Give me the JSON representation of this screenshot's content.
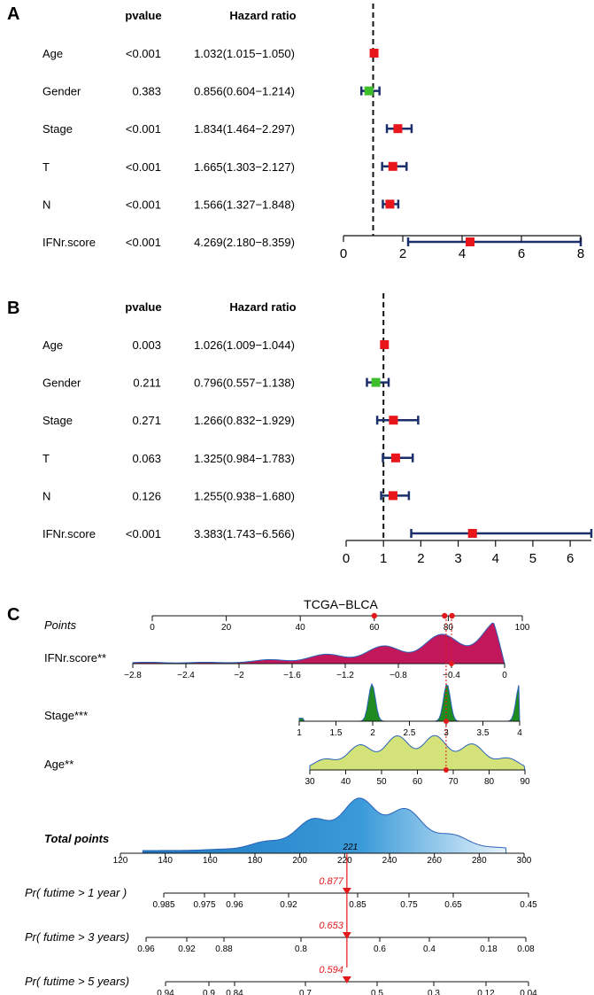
{
  "colors": {
    "navy": "#1b2f6b",
    "red": "#e8151b",
    "green": "#3cbf2a",
    "magenta": "#c2185b",
    "darkgreen": "#1f8a1f",
    "lime": "#d4e27a",
    "blue": "#2b8fd0",
    "marker": "#e31a1c"
  },
  "panel_labels": [
    "A",
    "B",
    "C"
  ],
  "chart_data": [
    {
      "type": "forest",
      "panel": "A",
      "col_pvalue": "pvalue",
      "col_hr": "Hazard ratio",
      "xlim": [
        0,
        8
      ],
      "xticks": [
        "0",
        "2",
        "4",
        "6",
        "8"
      ],
      "reference_line": 1,
      "rows": [
        {
          "label": "Age",
          "pvalue": "<0.001",
          "hr_text": "1.032(1.015−1.050)",
          "hr": 1.032,
          "lo": 1.015,
          "hi": 1.05,
          "risk": true
        },
        {
          "label": "Gender",
          "pvalue": "0.383",
          "hr_text": "0.856(0.604−1.214)",
          "hr": 0.856,
          "lo": 0.604,
          "hi": 1.214,
          "risk": false
        },
        {
          "label": "Stage",
          "pvalue": "<0.001",
          "hr_text": "1.834(1.464−2.297)",
          "hr": 1.834,
          "lo": 1.464,
          "hi": 2.297,
          "risk": true
        },
        {
          "label": "T",
          "pvalue": "<0.001",
          "hr_text": "1.665(1.303−2.127)",
          "hr": 1.665,
          "lo": 1.303,
          "hi": 2.127,
          "risk": true
        },
        {
          "label": "N",
          "pvalue": "<0.001",
          "hr_text": "1.566(1.327−1.848)",
          "hr": 1.566,
          "lo": 1.327,
          "hi": 1.848,
          "risk": true
        },
        {
          "label": "IFNr.score",
          "pvalue": "<0.001",
          "hr_text": "4.269(2.180−8.359)",
          "hr": 4.269,
          "lo": 2.18,
          "hi": 8.359,
          "risk": true
        }
      ]
    },
    {
      "type": "forest",
      "panel": "B",
      "col_pvalue": "pvalue",
      "col_hr": "Hazard ratio",
      "xlim": [
        0,
        6.566
      ],
      "xticks": [
        "0",
        "1",
        "2",
        "3",
        "4",
        "5",
        "6"
      ],
      "reference_line": 1,
      "rows": [
        {
          "label": "Age",
          "pvalue": "0.003",
          "hr_text": "1.026(1.009−1.044)",
          "hr": 1.026,
          "lo": 1.009,
          "hi": 1.044,
          "risk": true
        },
        {
          "label": "Gender",
          "pvalue": "0.211",
          "hr_text": "0.796(0.557−1.138)",
          "hr": 0.796,
          "lo": 0.557,
          "hi": 1.138,
          "risk": false
        },
        {
          "label": "Stage",
          "pvalue": "0.271",
          "hr_text": "1.266(0.832−1.929)",
          "hr": 1.266,
          "lo": 0.832,
          "hi": 1.929,
          "risk": true
        },
        {
          "label": "T",
          "pvalue": "0.063",
          "hr_text": "1.325(0.984−1.783)",
          "hr": 1.325,
          "lo": 0.984,
          "hi": 1.783,
          "risk": true
        },
        {
          "label": "N",
          "pvalue": "0.126",
          "hr_text": "1.255(0.938−1.680)",
          "hr": 1.255,
          "lo": 0.938,
          "hi": 1.68,
          "risk": true
        },
        {
          "label": "IFNr.score",
          "pvalue": "<0.001",
          "hr_text": "3.383(1.743−6.566)",
          "hr": 3.383,
          "lo": 1.743,
          "hi": 6.566,
          "risk": true
        }
      ]
    },
    {
      "type": "nomogram",
      "panel": "C",
      "title": "TCGA−BLCA",
      "points_axis": {
        "label": "Points",
        "min": 0,
        "max": 100,
        "ticks": [
          "0",
          "20",
          "40",
          "60",
          "80",
          "100"
        ]
      },
      "selected_points": [
        60,
        79,
        81
      ],
      "variables": [
        {
          "label": "IFNr.score**",
          "ticks": [
            "−2.8",
            "−2.4",
            "−2",
            "−1.6",
            "−1.2",
            "−0.8",
            "−0.4",
            "0"
          ],
          "tick_values": [
            -2.8,
            -2.4,
            -2,
            -1.6,
            -1.2,
            -0.8,
            -0.4,
            0
          ],
          "selected": -0.4
        },
        {
          "label": "Stage***",
          "ticks": [
            "1",
            "1.5",
            "2",
            "2.5",
            "3",
            "3.5",
            "4"
          ],
          "tick_values": [
            1,
            1.5,
            2,
            2.5,
            3,
            3.5,
            4
          ],
          "selected": 3
        },
        {
          "label": "Age**",
          "ticks": [
            "30",
            "40",
            "50",
            "60",
            "70",
            "80",
            "90"
          ],
          "tick_values": [
            30,
            40,
            50,
            60,
            70,
            80,
            90
          ],
          "selected": 68
        }
      ],
      "total_points": {
        "label": "Total points",
        "min": 120,
        "max": 300,
        "ticks": [
          "120",
          "140",
          "160",
          "180",
          "200",
          "220",
          "240",
          "260",
          "280",
          "300"
        ],
        "value_label": "221",
        "value": 221
      },
      "probabilities": [
        {
          "label": "Pr( futime > 1 year )",
          "ticks": [
            "0.985",
            "0.975",
            "0.96",
            "0.92",
            "0.85",
            "0.75",
            "0.65",
            "0.45"
          ],
          "value_label": "0.877"
        },
        {
          "label": "Pr( futime > 3 years)",
          "ticks": [
            "0.96",
            "0.92",
            "0.88",
            "0.8",
            "0.6",
            "0.4",
            "0.18",
            "0.08"
          ],
          "value_label": "0.653"
        },
        {
          "label": "Pr( futime > 5 years)",
          "ticks": [
            "0.94",
            "0.9",
            "0.84",
            "0.7",
            "0.5",
            "0.3",
            "0.12",
            "0.04"
          ],
          "value_label": "0.594"
        }
      ]
    }
  ]
}
